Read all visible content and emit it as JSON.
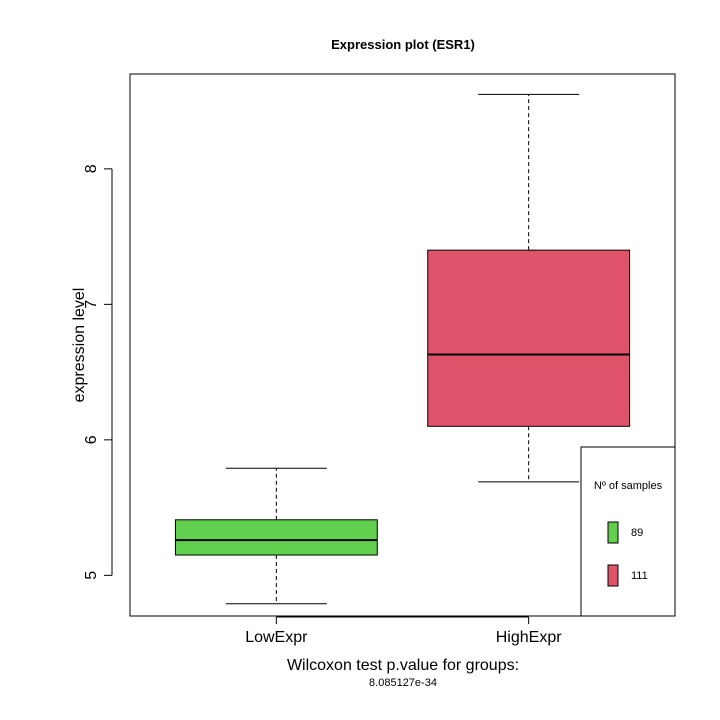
{
  "chart_data": {
    "type": "box",
    "title": "Expression plot (ESR1)",
    "xlabel": "Wilcoxon test p.value for groups:",
    "xsublabel": "8.085127e-34",
    "ylabel": "expression level",
    "ylim": [
      4.7,
      8.7
    ],
    "yticks": [
      5,
      6,
      7,
      8
    ],
    "grid": false,
    "categories": [
      "LowExpr",
      "HighExpr"
    ],
    "boxes": [
      {
        "category": "LowExpr",
        "min": 4.79,
        "q1": 5.15,
        "median": 5.26,
        "q3": 5.41,
        "max": 5.79,
        "color": "#61D04F"
      },
      {
        "category": "HighExpr",
        "min": 5.69,
        "q1": 6.1,
        "median": 6.63,
        "q3": 7.4,
        "max": 8.55,
        "color": "#DF536B"
      }
    ],
    "legend": {
      "title": "Nº of samples",
      "position": "bottom-right",
      "entries": [
        {
          "label": "89",
          "color": "#61D04F"
        },
        {
          "label": "111",
          "color": "#DF536B"
        }
      ]
    }
  }
}
